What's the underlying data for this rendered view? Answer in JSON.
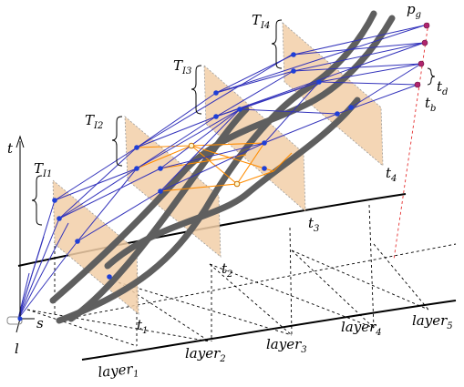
{
  "axes": {
    "t": "t",
    "s": "s",
    "l": "l"
  },
  "layers": [
    {
      "base": "layer",
      "sub": "1"
    },
    {
      "base": "layer",
      "sub": "2"
    },
    {
      "base": "layer",
      "sub": "3"
    },
    {
      "base": "layer",
      "sub": "4"
    },
    {
      "base": "layer",
      "sub": "5"
    }
  ],
  "times": [
    {
      "base": "t",
      "sub": "1"
    },
    {
      "base": "t",
      "sub": "2"
    },
    {
      "base": "t",
      "sub": "3"
    },
    {
      "base": "t",
      "sub": "4"
    }
  ],
  "intervals": [
    {
      "base": "T",
      "sub": "I1"
    },
    {
      "base": "T",
      "sub": "I2"
    },
    {
      "base": "T",
      "sub": "I3"
    },
    {
      "base": "T",
      "sub": "I4"
    }
  ],
  "goal": {
    "base": "p",
    "sub": "g"
  },
  "t_d": {
    "base": "t",
    "sub": "d"
  },
  "t_b": {
    "base": "t",
    "sub": "b"
  },
  "colors": {
    "obstacle": "#f2cfa8",
    "path": "#3333bb",
    "feasible": "#ff8c00",
    "trajectory": "#5f5f5f",
    "node": "#1f3fd6",
    "goal_node": "#b0246e"
  }
}
